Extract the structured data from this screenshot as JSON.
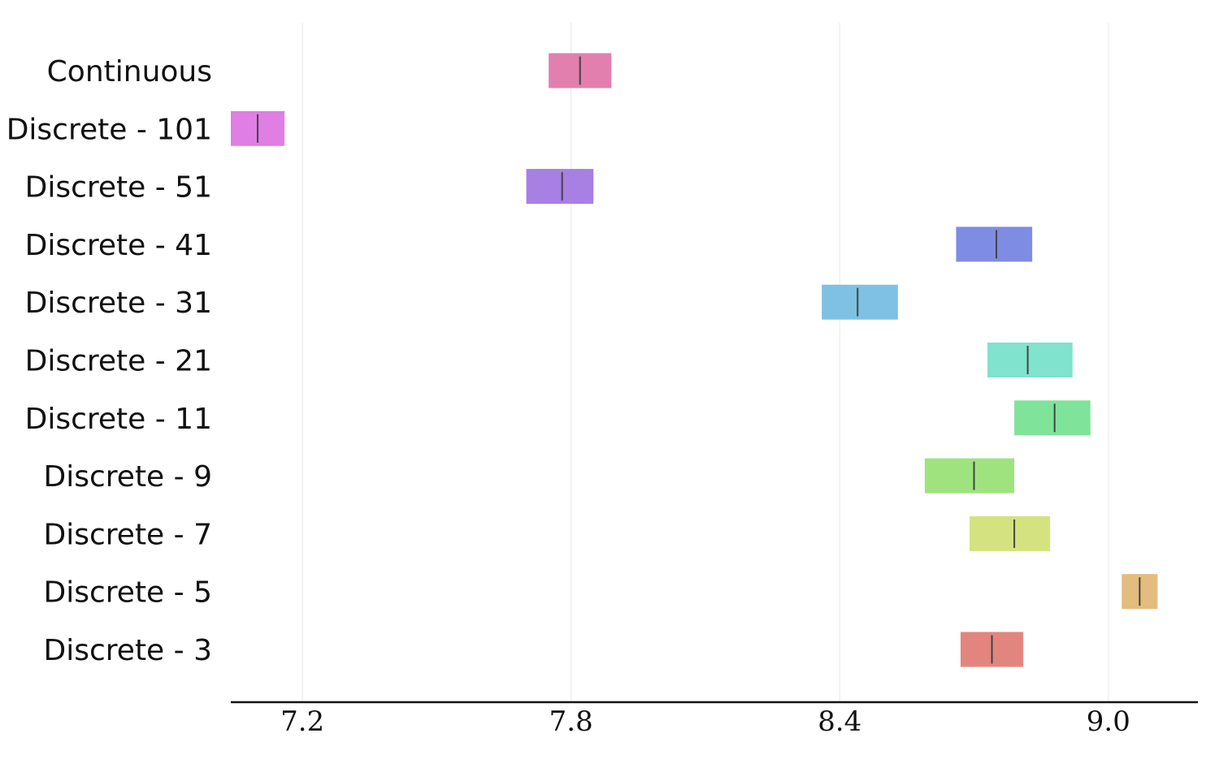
{
  "chart_data": {
    "type": "bar",
    "orientation": "horizontal",
    "title": "",
    "xlabel": "",
    "ylabel": "",
    "xlim": [
      7.04,
      9.2
    ],
    "xticks": [
      7.2,
      7.8,
      8.4,
      9.0
    ],
    "xtick_labels": [
      "7.2",
      "7.8",
      "8.4",
      "9.0"
    ],
    "grid": "vertical",
    "legend": "none",
    "categories": [
      "Continuous",
      "Discrete - 101",
      "Discrete - 51",
      "Discrete - 41",
      "Discrete - 31",
      "Discrete - 21",
      "Discrete - 11",
      "Discrete - 9",
      "Discrete - 7",
      "Discrete - 5",
      "Discrete - 3"
    ],
    "ranges": [
      {
        "low": 7.75,
        "high": 7.89,
        "median": 7.82,
        "color": "#e27fae"
      },
      {
        "low": 7.04,
        "high": 7.16,
        "median": 7.1,
        "color": "#df7ee3"
      },
      {
        "low": 7.7,
        "high": 7.85,
        "median": 7.78,
        "color": "#a87fe3"
      },
      {
        "low": 8.66,
        "high": 8.83,
        "median": 8.75,
        "color": "#7f8ce3"
      },
      {
        "low": 8.36,
        "high": 8.53,
        "median": 8.44,
        "color": "#7fc1e3"
      },
      {
        "low": 8.73,
        "high": 8.92,
        "median": 8.82,
        "color": "#7fe3ce"
      },
      {
        "low": 8.79,
        "high": 8.96,
        "median": 8.88,
        "color": "#7fe39a"
      },
      {
        "low": 8.59,
        "high": 8.79,
        "median": 8.7,
        "color": "#9fe37f"
      },
      {
        "low": 8.69,
        "high": 8.87,
        "median": 8.79,
        "color": "#d4e37f"
      },
      {
        "low": 9.03,
        "high": 9.11,
        "median": 9.07,
        "color": "#e3bc7f"
      },
      {
        "low": 8.67,
        "high": 8.81,
        "median": 8.74,
        "color": "#e3857f"
      }
    ]
  }
}
